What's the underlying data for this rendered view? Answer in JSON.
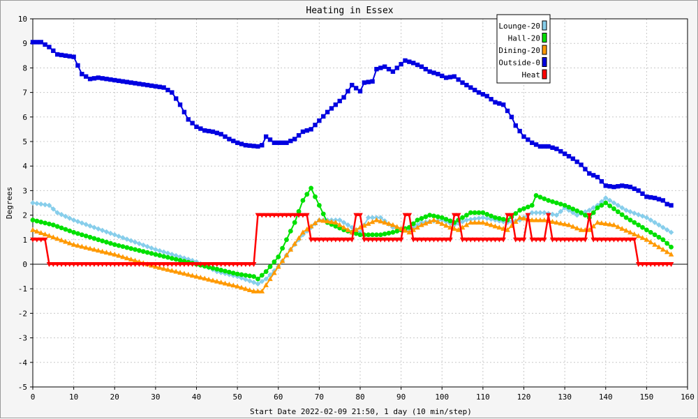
{
  "chart_data": {
    "type": "line",
    "title": "Heating in Essex",
    "xlabel": "Start Date 2022-02-09 21:50, 1 day (10 min/step)",
    "ylabel": "Degrees",
    "xlim": [
      0,
      160
    ],
    "ylim": [
      -5,
      10
    ],
    "xticks": [
      0,
      10,
      20,
      30,
      40,
      50,
      60,
      70,
      80,
      90,
      100,
      110,
      120,
      130,
      140,
      150,
      160
    ],
    "yticks": [
      -5,
      -4,
      -3,
      -2,
      -1,
      0,
      1,
      2,
      3,
      4,
      5,
      6,
      7,
      8,
      9,
      10
    ],
    "grid": true,
    "legend_position": "top-right",
    "series": [
      {
        "name": "Lounge-20",
        "color": "#87ceeb",
        "marker": "diamond",
        "points": [
          [
            0,
            2.5
          ],
          [
            4,
            2.4
          ],
          [
            6,
            2.1
          ],
          [
            10,
            1.8
          ],
          [
            20,
            1.2
          ],
          [
            30,
            0.6
          ],
          [
            40,
            0.1
          ],
          [
            45,
            -0.3
          ],
          [
            50,
            -0.5
          ],
          [
            55,
            -0.8
          ],
          [
            57,
            -0.6
          ],
          [
            60,
            -0.1
          ],
          [
            63,
            0.6
          ],
          [
            66,
            1.2
          ],
          [
            70,
            1.8
          ],
          [
            75,
            1.8
          ],
          [
            80,
            1.3
          ],
          [
            82,
            1.9
          ],
          [
            85,
            1.9
          ],
          [
            88,
            1.5
          ],
          [
            92,
            1.4
          ],
          [
            95,
            1.7
          ],
          [
            100,
            1.8
          ],
          [
            103,
            1.6
          ],
          [
            106,
            1.8
          ],
          [
            110,
            1.9
          ],
          [
            113,
            1.8
          ],
          [
            116,
            1.7
          ],
          [
            119,
            1.8
          ],
          [
            122,
            2.1
          ],
          [
            125,
            2.1
          ],
          [
            128,
            2.0
          ],
          [
            130,
            2.3
          ],
          [
            133,
            2.0
          ],
          [
            136,
            2.2
          ],
          [
            138,
            2.4
          ],
          [
            140,
            2.7
          ],
          [
            145,
            2.2
          ],
          [
            150,
            1.9
          ],
          [
            154,
            1.5
          ],
          [
            156,
            1.3
          ]
        ]
      },
      {
        "name": "Hall-20",
        "color": "#00e000",
        "marker": "circle",
        "points": [
          [
            0,
            1.8
          ],
          [
            5,
            1.6
          ],
          [
            10,
            1.3
          ],
          [
            20,
            0.8
          ],
          [
            30,
            0.4
          ],
          [
            40,
            0.0
          ],
          [
            45,
            -0.2
          ],
          [
            50,
            -0.4
          ],
          [
            54,
            -0.5
          ],
          [
            55,
            -0.6
          ],
          [
            57,
            -0.3
          ],
          [
            60,
            0.3
          ],
          [
            62,
            1.0
          ],
          [
            64,
            1.7
          ],
          [
            66,
            2.6
          ],
          [
            68,
            3.1
          ],
          [
            70,
            2.4
          ],
          [
            72,
            1.7
          ],
          [
            76,
            1.4
          ],
          [
            80,
            1.2
          ],
          [
            85,
            1.2
          ],
          [
            88,
            1.3
          ],
          [
            92,
            1.5
          ],
          [
            94,
            1.8
          ],
          [
            97,
            2.0
          ],
          [
            100,
            1.9
          ],
          [
            103,
            1.7
          ],
          [
            107,
            2.1
          ],
          [
            110,
            2.1
          ],
          [
            113,
            1.9
          ],
          [
            116,
            1.8
          ],
          [
            119,
            2.2
          ],
          [
            122,
            2.4
          ],
          [
            123,
            2.8
          ],
          [
            126,
            2.6
          ],
          [
            130,
            2.4
          ],
          [
            134,
            2.1
          ],
          [
            136,
            1.9
          ],
          [
            138,
            2.3
          ],
          [
            140,
            2.5
          ],
          [
            145,
            1.9
          ],
          [
            150,
            1.4
          ],
          [
            154,
            1.0
          ],
          [
            156,
            0.7
          ]
        ]
      },
      {
        "name": "Dining-20",
        "color": "#ff9900",
        "marker": "triangle",
        "points": [
          [
            0,
            1.4
          ],
          [
            5,
            1.1
          ],
          [
            10,
            0.8
          ],
          [
            20,
            0.4
          ],
          [
            30,
            -0.1
          ],
          [
            40,
            -0.5
          ],
          [
            45,
            -0.7
          ],
          [
            50,
            -0.9
          ],
          [
            54,
            -1.1
          ],
          [
            56,
            -1.1
          ],
          [
            58,
            -0.6
          ],
          [
            60,
            -0.1
          ],
          [
            63,
            0.6
          ],
          [
            66,
            1.3
          ],
          [
            70,
            1.8
          ],
          [
            74,
            1.7
          ],
          [
            78,
            1.3
          ],
          [
            80,
            1.5
          ],
          [
            84,
            1.8
          ],
          [
            88,
            1.6
          ],
          [
            92,
            1.3
          ],
          [
            95,
            1.6
          ],
          [
            98,
            1.8
          ],
          [
            102,
            1.5
          ],
          [
            104,
            1.4
          ],
          [
            107,
            1.7
          ],
          [
            110,
            1.7
          ],
          [
            114,
            1.5
          ],
          [
            116,
            1.4
          ],
          [
            119,
            1.9
          ],
          [
            122,
            1.8
          ],
          [
            125,
            1.8
          ],
          [
            128,
            1.7
          ],
          [
            131,
            1.6
          ],
          [
            134,
            1.4
          ],
          [
            136,
            1.4
          ],
          [
            138,
            1.7
          ],
          [
            142,
            1.6
          ],
          [
            146,
            1.3
          ],
          [
            150,
            1.0
          ],
          [
            154,
            0.6
          ],
          [
            156,
            0.4
          ]
        ]
      },
      {
        "name": "Outside-0",
        "color": "#0000e0",
        "marker": "square",
        "points": [
          [
            0,
            9.05
          ],
          [
            2,
            9.05
          ],
          [
            4,
            8.85
          ],
          [
            6,
            8.55
          ],
          [
            10,
            8.45
          ],
          [
            12,
            7.75
          ],
          [
            14,
            7.55
          ],
          [
            16,
            7.6
          ],
          [
            18,
            7.55
          ],
          [
            20,
            7.5
          ],
          [
            22,
            7.45
          ],
          [
            28,
            7.3
          ],
          [
            32,
            7.2
          ],
          [
            34,
            7.0
          ],
          [
            36,
            6.5
          ],
          [
            38,
            5.9
          ],
          [
            40,
            5.6
          ],
          [
            42,
            5.45
          ],
          [
            44,
            5.4
          ],
          [
            46,
            5.3
          ],
          [
            48,
            5.1
          ],
          [
            50,
            4.95
          ],
          [
            52,
            4.85
          ],
          [
            55,
            4.8
          ],
          [
            56,
            4.85
          ],
          [
            57,
            5.2
          ],
          [
            59,
            4.95
          ],
          [
            62,
            4.95
          ],
          [
            64,
            5.1
          ],
          [
            66,
            5.4
          ],
          [
            68,
            5.5
          ],
          [
            70,
            5.85
          ],
          [
            72,
            6.2
          ],
          [
            74,
            6.5
          ],
          [
            76,
            6.8
          ],
          [
            78,
            7.3
          ],
          [
            80,
            7.05
          ],
          [
            81,
            7.4
          ],
          [
            83,
            7.45
          ],
          [
            84,
            7.95
          ],
          [
            86,
            8.05
          ],
          [
            88,
            7.85
          ],
          [
            90,
            8.15
          ],
          [
            91,
            8.3
          ],
          [
            93,
            8.2
          ],
          [
            95,
            8.05
          ],
          [
            97,
            7.85
          ],
          [
            99,
            7.75
          ],
          [
            101,
            7.6
          ],
          [
            103,
            7.65
          ],
          [
            105,
            7.4
          ],
          [
            107,
            7.2
          ],
          [
            109,
            7.0
          ],
          [
            111,
            6.85
          ],
          [
            113,
            6.6
          ],
          [
            115,
            6.5
          ],
          [
            117,
            6.0
          ],
          [
            118,
            5.65
          ],
          [
            120,
            5.2
          ],
          [
            122,
            4.95
          ],
          [
            124,
            4.8
          ],
          [
            126,
            4.8
          ],
          [
            128,
            4.7
          ],
          [
            130,
            4.5
          ],
          [
            132,
            4.3
          ],
          [
            134,
            4.05
          ],
          [
            136,
            3.7
          ],
          [
            138,
            3.55
          ],
          [
            140,
            3.2
          ],
          [
            142,
            3.15
          ],
          [
            144,
            3.2
          ],
          [
            146,
            3.15
          ],
          [
            148,
            3.0
          ],
          [
            150,
            2.75
          ],
          [
            152,
            2.7
          ],
          [
            154,
            2.6
          ],
          [
            155,
            2.45
          ],
          [
            156,
            2.4
          ]
        ]
      },
      {
        "name": "Heat",
        "color": "#ff0000",
        "marker": "triangle-down",
        "points": [
          [
            0,
            1
          ],
          [
            3,
            1
          ],
          [
            4,
            0
          ],
          [
            54,
            0
          ],
          [
            55,
            2
          ],
          [
            67,
            2
          ],
          [
            68,
            1
          ],
          [
            78,
            1
          ],
          [
            79,
            2
          ],
          [
            80,
            2
          ],
          [
            81,
            1
          ],
          [
            90,
            1
          ],
          [
            91,
            2
          ],
          [
            92,
            2
          ],
          [
            93,
            1
          ],
          [
            102,
            1
          ],
          [
            103,
            2
          ],
          [
            104,
            2
          ],
          [
            105,
            1
          ],
          [
            115,
            1
          ],
          [
            116,
            2
          ],
          [
            117,
            2
          ],
          [
            118,
            1
          ],
          [
            120,
            1
          ],
          [
            121,
            2
          ],
          [
            122,
            1
          ],
          [
            125,
            1
          ],
          [
            126,
            2
          ],
          [
            127,
            1
          ],
          [
            135,
            1
          ],
          [
            136,
            2
          ],
          [
            137,
            1
          ],
          [
            147,
            1
          ],
          [
            148,
            0
          ],
          [
            156,
            0
          ]
        ]
      }
    ]
  }
}
